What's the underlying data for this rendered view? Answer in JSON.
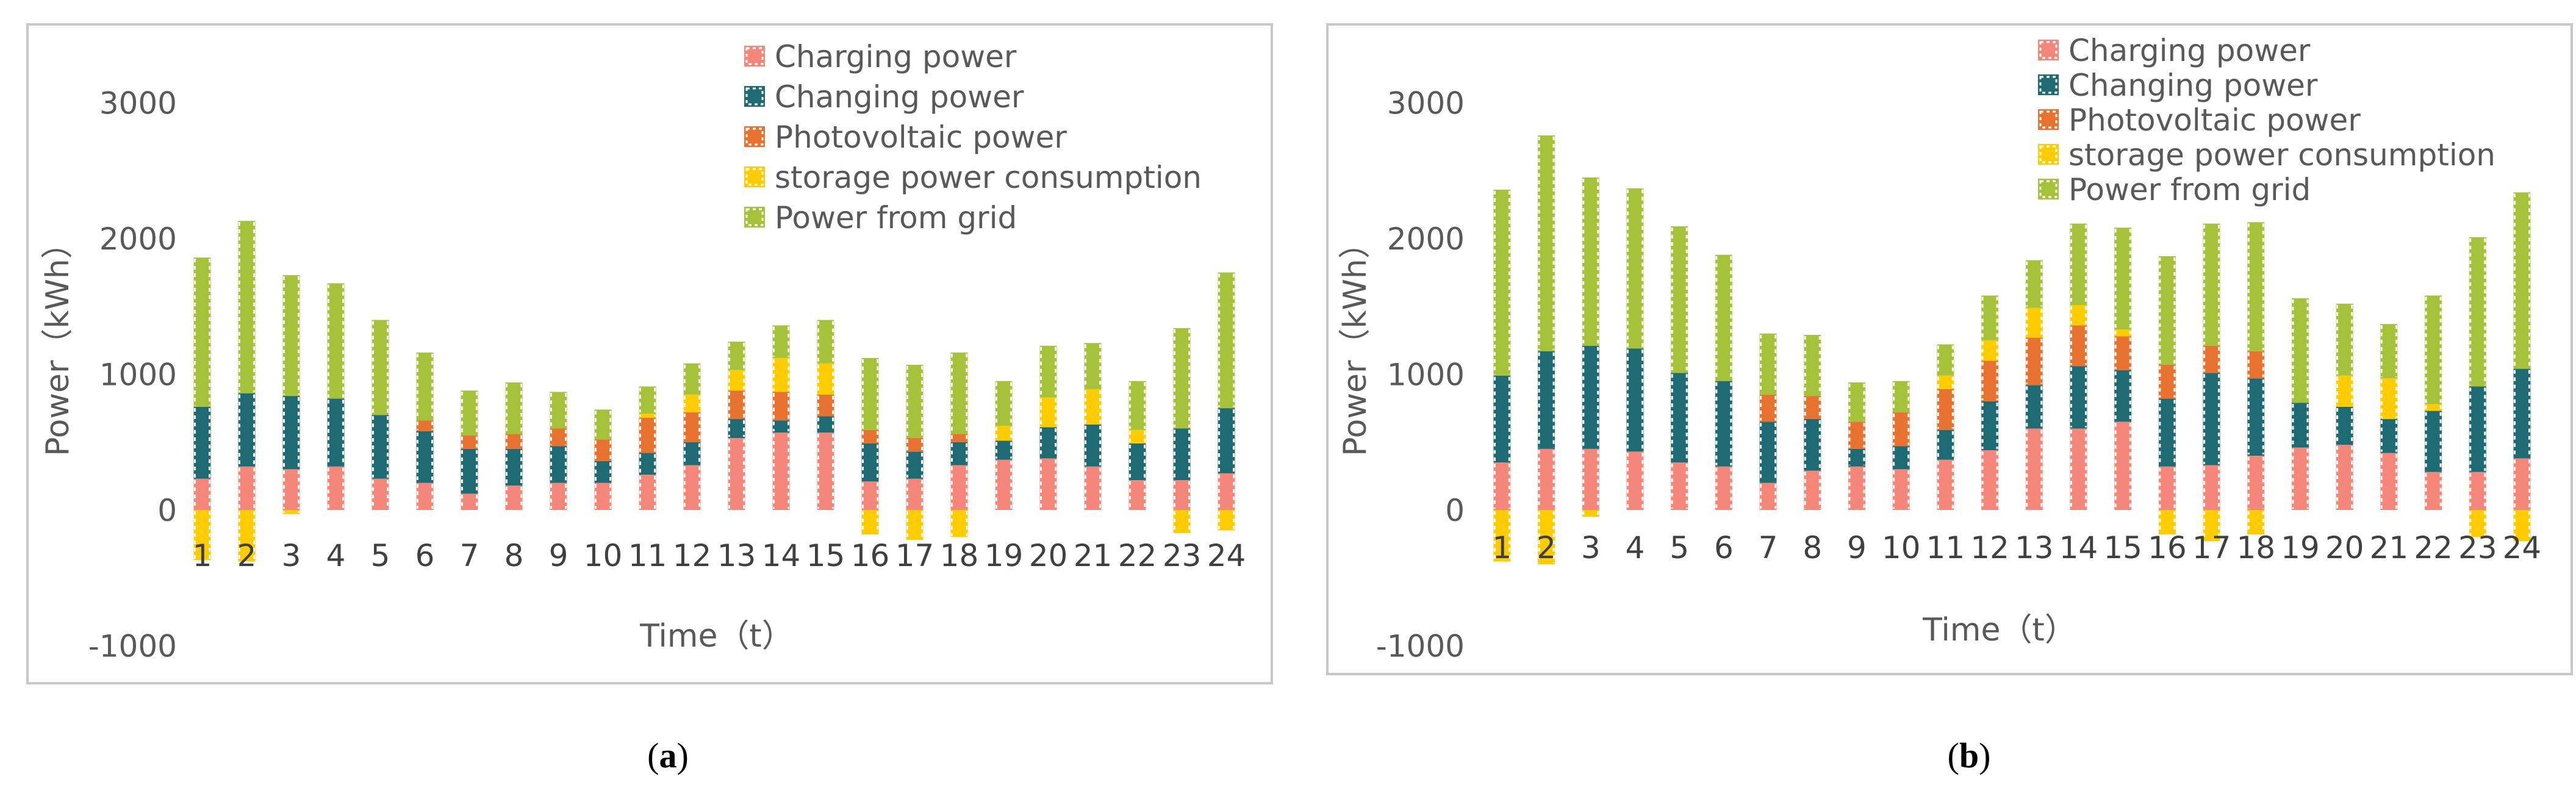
{
  "chart_data": [
    {
      "type": "bar",
      "stacked": true,
      "panel_label": "a",
      "title": "",
      "xlabel": "Time（t）",
      "ylabel": "Power（kWh）",
      "ylim": [
        -1000,
        3000
      ],
      "yticks": [
        3000,
        2000,
        1000,
        0,
        -1000
      ],
      "legend_position": "top-right",
      "categories": [
        "1",
        "2",
        "3",
        "4",
        "5",
        "6",
        "7",
        "8",
        "9",
        "10",
        "11",
        "12",
        "13",
        "14",
        "15",
        "16",
        "17",
        "18",
        "19",
        "20",
        "21",
        "22",
        "23",
        "24"
      ],
      "series": [
        {
          "name": "Charging power",
          "color": "#F4877A",
          "values": [
            230,
            320,
            300,
            320,
            230,
            200,
            120,
            180,
            200,
            200,
            260,
            330,
            530,
            570,
            570,
            210,
            230,
            330,
            370,
            380,
            320,
            220,
            220,
            270
          ]
        },
        {
          "name": "Changing power",
          "color": "#1F6B73",
          "values": [
            530,
            540,
            540,
            500,
            470,
            380,
            330,
            270,
            270,
            160,
            160,
            170,
            140,
            90,
            120,
            280,
            200,
            170,
            140,
            230,
            310,
            270,
            380,
            480
          ]
        },
        {
          "name": "Photovoltaic power",
          "color": "#E8722F",
          "values": [
            0,
            0,
            0,
            0,
            0,
            80,
            100,
            110,
            130,
            160,
            260,
            220,
            210,
            210,
            160,
            100,
            100,
            60,
            0,
            0,
            0,
            0,
            0,
            0
          ]
        },
        {
          "name": "storage power consumption",
          "color": "#FFCC00",
          "values": [
            -370,
            -380,
            -30,
            0,
            0,
            0,
            0,
            0,
            0,
            0,
            30,
            130,
            150,
            250,
            230,
            -180,
            -220,
            -200,
            110,
            220,
            260,
            100,
            -170,
            -150
          ]
        },
        {
          "name": "Power from grid",
          "color": "#A6C23A",
          "values": [
            1100,
            1270,
            890,
            850,
            700,
            500,
            330,
            380,
            270,
            220,
            200,
            230,
            210,
            240,
            320,
            530,
            540,
            600,
            330,
            380,
            340,
            360,
            740,
            1000
          ]
        }
      ]
    },
    {
      "type": "bar",
      "stacked": true,
      "panel_label": "b",
      "title": "",
      "xlabel": "Time（t）",
      "ylabel": "Power（kWh）",
      "ylim": [
        -1000,
        3000
      ],
      "yticks": [
        3000,
        2000,
        1000,
        0,
        -1000
      ],
      "legend_position": "top-right",
      "categories": [
        "1",
        "2",
        "3",
        "4",
        "5",
        "6",
        "7",
        "8",
        "9",
        "10",
        "11",
        "12",
        "13",
        "14",
        "15",
        "16",
        "17",
        "18",
        "19",
        "20",
        "21",
        "22",
        "23",
        "24"
      ],
      "series": [
        {
          "name": "Charging power",
          "color": "#F4877A",
          "values": [
            350,
            450,
            450,
            430,
            350,
            320,
            200,
            290,
            320,
            300,
            370,
            440,
            600,
            600,
            650,
            320,
            330,
            400,
            460,
            480,
            420,
            280,
            280,
            380
          ]
        },
        {
          "name": "Changing power",
          "color": "#1F6B73",
          "values": [
            640,
            720,
            760,
            760,
            660,
            630,
            450,
            380,
            130,
            170,
            220,
            360,
            320,
            460,
            380,
            500,
            680,
            570,
            330,
            280,
            250,
            450,
            630,
            660
          ]
        },
        {
          "name": "Photovoltaic power",
          "color": "#E8722F",
          "values": [
            0,
            0,
            0,
            0,
            0,
            0,
            200,
            170,
            200,
            250,
            300,
            300,
            350,
            300,
            250,
            250,
            200,
            200,
            0,
            0,
            0,
            0,
            0,
            0
          ]
        },
        {
          "name": "storage power consumption",
          "color": "#FFCC00",
          "values": [
            -380,
            -400,
            -50,
            0,
            0,
            0,
            0,
            0,
            0,
            0,
            100,
            150,
            220,
            150,
            50,
            -180,
            -230,
            -180,
            0,
            230,
            300,
            50,
            -200,
            -230
          ]
        },
        {
          "name": "Power from grid",
          "color": "#A6C23A",
          "values": [
            1370,
            1590,
            1240,
            1180,
            1080,
            930,
            450,
            450,
            290,
            230,
            230,
            330,
            350,
            600,
            750,
            800,
            900,
            950,
            770,
            530,
            400,
            800,
            1100,
            1300
          ]
        }
      ]
    }
  ]
}
